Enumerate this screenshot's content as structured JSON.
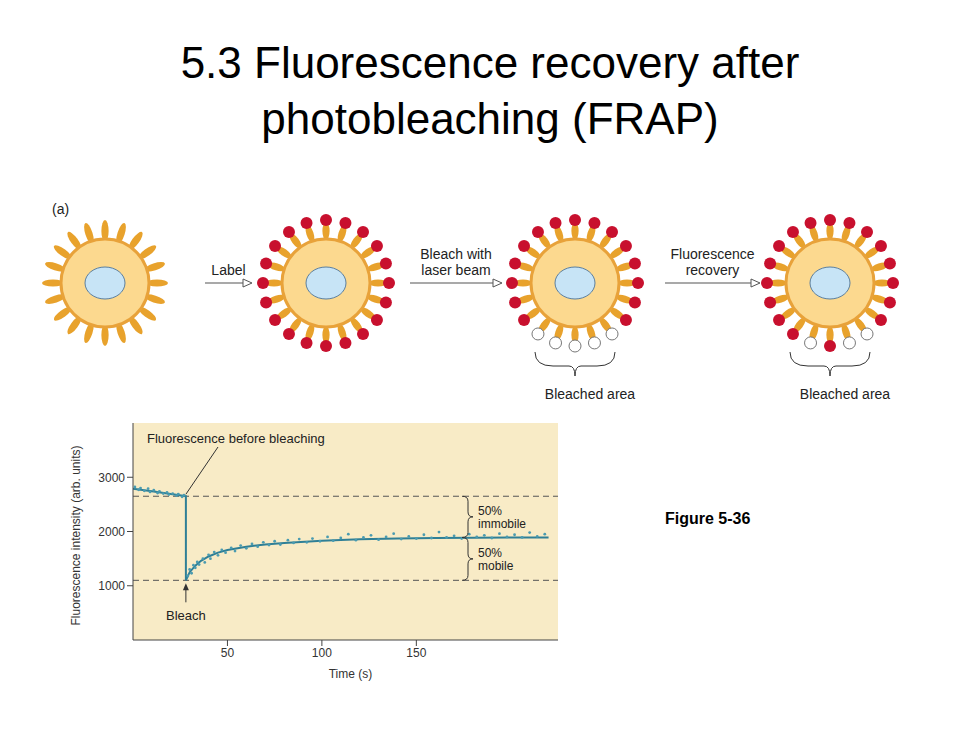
{
  "slide_title": [
    "5.3 Fluorescence recovery after",
    "photobleaching (FRAP)"
  ],
  "figure_label": "Figure 5-36",
  "diagram": {
    "panel": "(a)",
    "steps": [
      [
        "Label"
      ],
      [
        "Bleach with",
        "laser beam"
      ],
      [
        "Fluorescence",
        "recovery"
      ]
    ],
    "captions": [
      "Bleached area",
      "Bleached area"
    ]
  },
  "chart_data": {
    "type": "scatter",
    "xlabel": "Time (s)",
    "ylabel": "Fluorescence intensity (arb. units)",
    "xlim": [
      0,
      225
    ],
    "xticks": [
      50,
      100,
      150
    ],
    "ylim": [
      0,
      4000
    ],
    "yticks": [
      1000,
      2000,
      3000
    ],
    "grid": false,
    "series": [
      {
        "type": "scatter",
        "color": "#4a9bb0",
        "marker": "circle",
        "x": [
          1,
          3,
          4,
          6,
          8,
          9,
          11,
          13,
          14,
          16,
          18,
          19,
          21,
          23,
          24,
          26,
          27,
          29,
          30,
          31,
          32,
          33,
          34,
          35,
          37,
          38,
          40,
          41,
          43,
          45,
          47,
          49,
          52,
          54,
          57,
          60,
          63,
          66,
          69,
          72,
          75,
          78,
          82,
          85,
          88,
          92,
          95,
          99,
          103,
          106,
          110,
          114,
          118,
          122,
          126,
          130,
          134,
          138,
          142,
          146,
          150,
          154,
          158,
          162,
          166,
          170,
          174,
          178,
          182,
          186,
          190,
          194,
          198,
          202,
          206,
          210,
          214,
          218
        ],
        "values": [
          2820,
          2770,
          2800,
          2750,
          2790,
          2730,
          2760,
          2710,
          2740,
          2700,
          2720,
          2680,
          2700,
          2660,
          2690,
          2640,
          2670,
          1180,
          1300,
          1230,
          1380,
          1330,
          1440,
          1390,
          1500,
          1430,
          1570,
          1500,
          1620,
          1560,
          1660,
          1610,
          1700,
          1640,
          1740,
          1690,
          1770,
          1720,
          1800,
          1750,
          1820,
          1760,
          1840,
          1790,
          1860,
          1800,
          1870,
          1820,
          1900,
          1830,
          1880,
          1950,
          1840,
          1890,
          1930,
          1850,
          1900,
          1960,
          1860,
          1910,
          1870,
          1940,
          1880,
          1990,
          1890,
          1920,
          1870,
          1950,
          1900,
          1930,
          1880,
          1960,
          1900,
          1940,
          1890,
          1980,
          1910,
          1950
        ]
      },
      {
        "type": "line",
        "color": "#2f7f96",
        "line_style": "solid",
        "x": [
          0,
          10,
          20,
          28,
          28,
          30,
          33,
          36,
          40,
          45,
          50,
          60,
          70,
          80,
          100,
          120,
          140,
          160,
          180,
          200,
          220
        ],
        "values": [
          2790,
          2740,
          2690,
          2650,
          1100,
          1250,
          1370,
          1460,
          1540,
          1610,
          1660,
          1720,
          1760,
          1790,
          1830,
          1855,
          1870,
          1880,
          1885,
          1890,
          1890
        ]
      }
    ],
    "reference_lines": [
      2650,
      1100
    ],
    "annotations": [
      {
        "text": "Fluorescence before bleaching",
        "x": 28,
        "y": 2650
      },
      {
        "text": "Bleach",
        "x": 28,
        "y": 1100
      }
    ],
    "braces": [
      {
        "lines": [
          "50%",
          "immobile"
        ]
      },
      {
        "lines": [
          "50%",
          "mobile"
        ]
      }
    ]
  }
}
